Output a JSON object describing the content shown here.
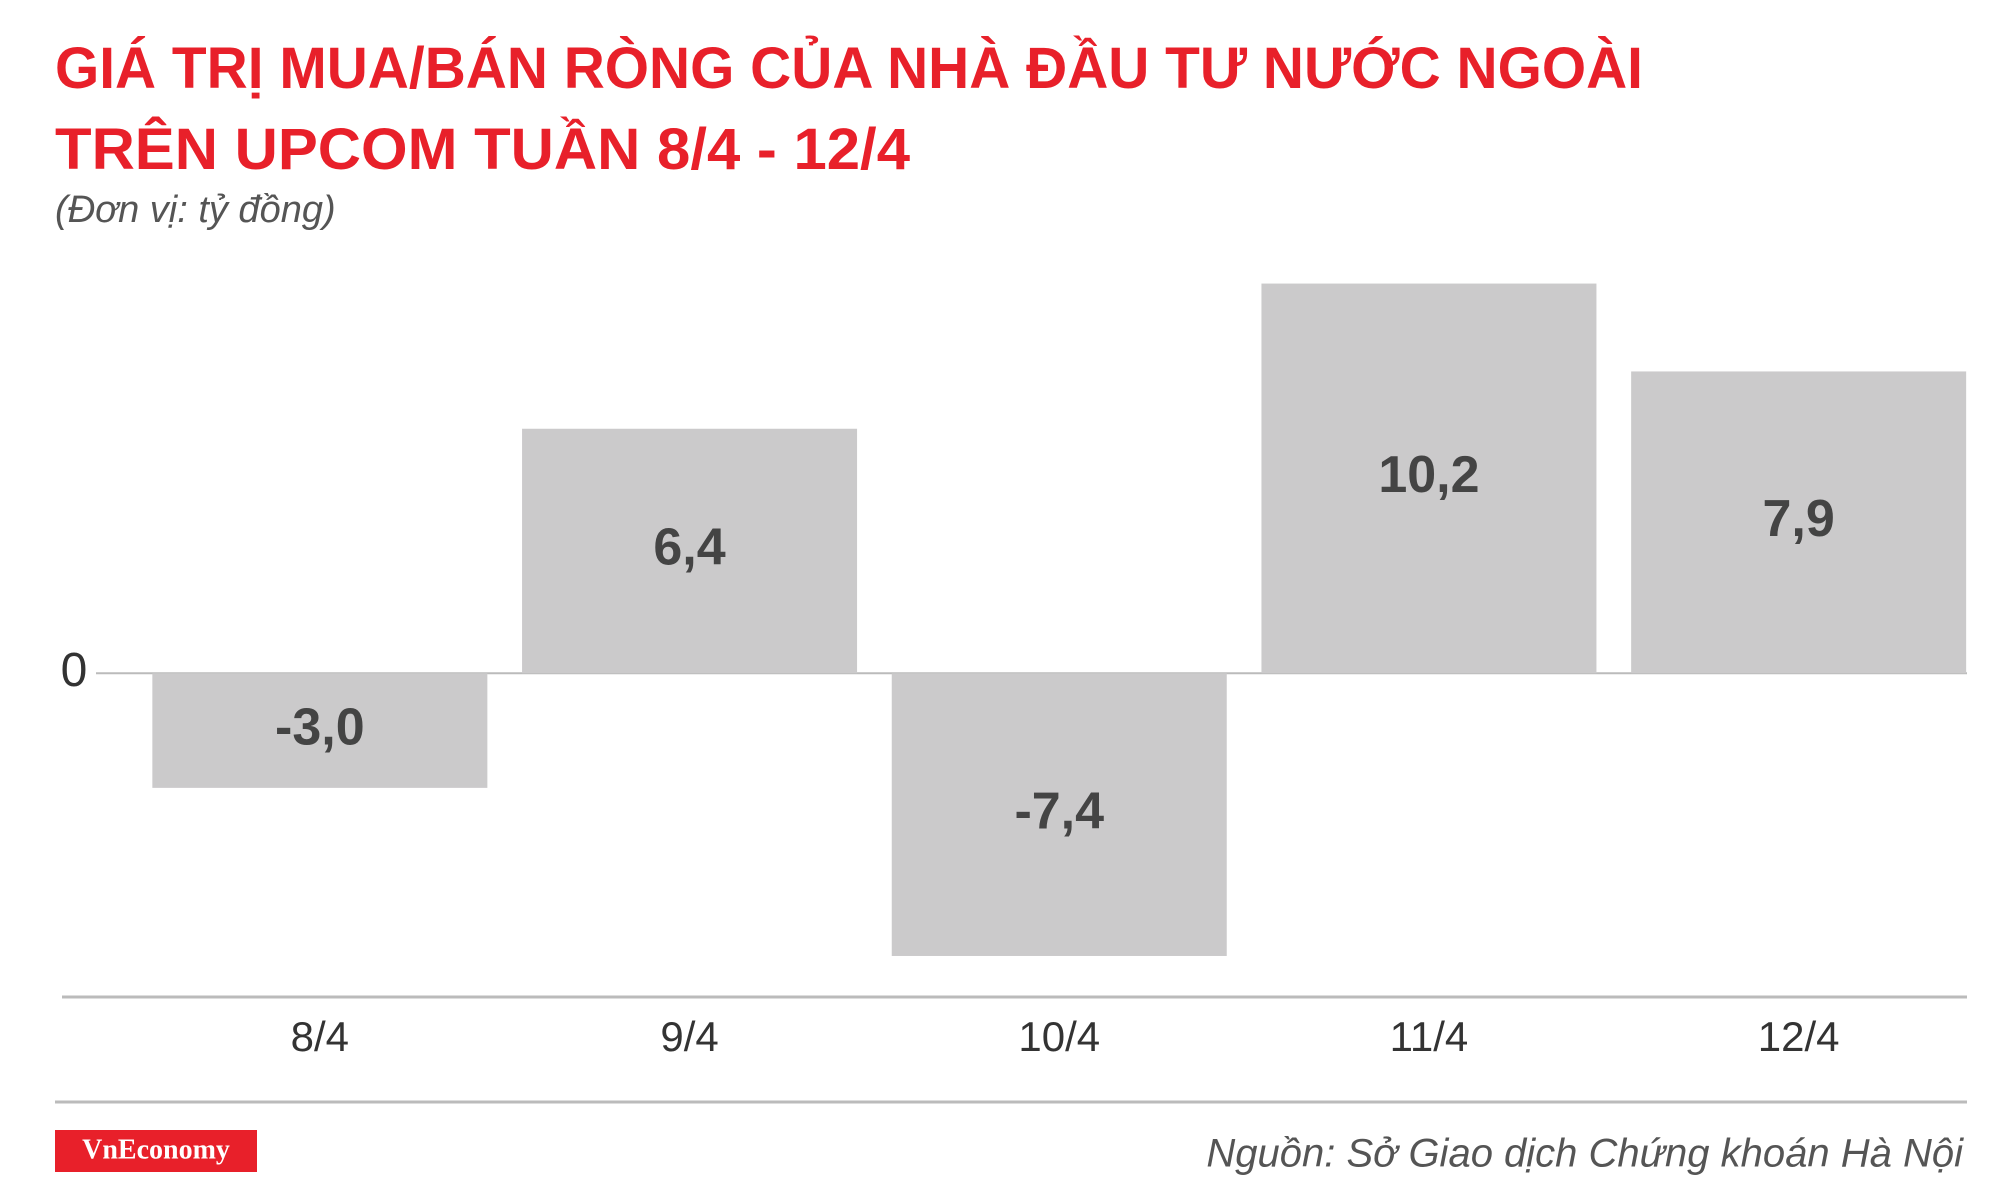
{
  "chart_data": {
    "type": "bar",
    "title": [
      "GIÁ TRỊ MUA/BÁN RÒNG CỦA NHÀ ĐẦU TƯ NƯỚC NGOÀI",
      "TRÊN UPCOM TUẦN 8/4 - 12/4"
    ],
    "subtitle": "(Đơn vị: tỷ đồng)",
    "categories": [
      "8/4",
      "9/4",
      "10/4",
      "11/4",
      "12/4"
    ],
    "values": [
      -3.0,
      6.4,
      -7.4,
      10.2,
      7.9
    ],
    "value_labels": [
      "-3,0",
      "6,4",
      "-7,4",
      "10,2",
      "7,9"
    ],
    "color": "#cbcacb",
    "ylim": [
      -8.5,
      11
    ],
    "yticks": [
      0
    ],
    "source": "Nguồn: Sở Giao dịch Chứng khoán Hà Nội",
    "brand": "VnEconomy"
  }
}
